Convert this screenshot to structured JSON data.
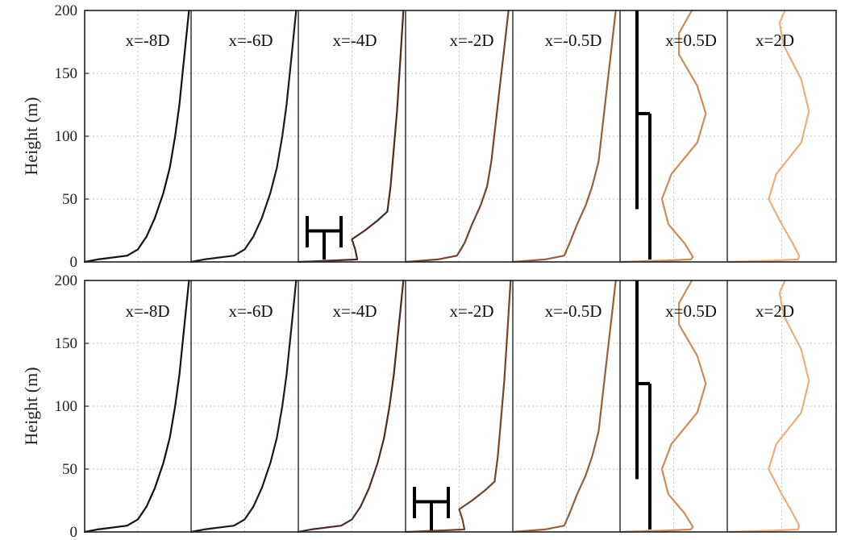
{
  "chart_data": [
    {
      "type": "line",
      "panel": "top",
      "ylabel": "Height (m)",
      "ylim": [
        0,
        200
      ],
      "yticks": [
        0,
        50,
        100,
        150,
        200
      ],
      "grid": true,
      "stations": [
        {
          "label": "x=-8D",
          "color": "#111111",
          "profile": [
            [
              0,
              0
            ],
            [
              0.12,
              2
            ],
            [
              0.4,
              5
            ],
            [
              0.5,
              10
            ],
            [
              0.58,
              20
            ],
            [
              0.66,
              35
            ],
            [
              0.74,
              55
            ],
            [
              0.8,
              75
            ],
            [
              0.85,
              100
            ],
            [
              0.89,
              125
            ],
            [
              0.92,
              150
            ],
            [
              0.95,
              175
            ],
            [
              0.98,
              200
            ]
          ]
        },
        {
          "label": "x=-6D",
          "color": "#241612",
          "profile": [
            [
              0,
              0
            ],
            [
              0.12,
              2
            ],
            [
              0.4,
              5
            ],
            [
              0.5,
              10
            ],
            [
              0.58,
              20
            ],
            [
              0.66,
              35
            ],
            [
              0.74,
              55
            ],
            [
              0.8,
              75
            ],
            [
              0.85,
              100
            ],
            [
              0.89,
              125
            ],
            [
              0.92,
              150
            ],
            [
              0.95,
              175
            ],
            [
              0.98,
              200
            ]
          ]
        },
        {
          "label": "x=-4D",
          "color": "#4a2d20",
          "profile": [
            [
              0,
              0
            ],
            [
              0.3,
              1
            ],
            [
              0.55,
              2
            ],
            [
              0.53,
              10
            ],
            [
              0.5,
              18
            ],
            [
              0.62,
              25
            ],
            [
              0.74,
              33
            ],
            [
              0.83,
              40
            ],
            [
              0.86,
              60
            ],
            [
              0.89,
              90
            ],
            [
              0.92,
              120
            ],
            [
              0.95,
              160
            ],
            [
              0.98,
              200
            ]
          ]
        },
        {
          "label": "x=-2D",
          "color": "#74452d",
          "profile": [
            [
              0,
              0
            ],
            [
              0.3,
              2
            ],
            [
              0.48,
              5
            ],
            [
              0.55,
              15
            ],
            [
              0.62,
              30
            ],
            [
              0.7,
              45
            ],
            [
              0.76,
              60
            ],
            [
              0.8,
              80
            ],
            [
              0.84,
              110
            ],
            [
              0.88,
              140
            ],
            [
              0.92,
              170
            ],
            [
              0.96,
              200
            ]
          ]
        },
        {
          "label": "x=-0.5D",
          "color": "#9a5f3a",
          "profile": [
            [
              0,
              0
            ],
            [
              0.3,
              2
            ],
            [
              0.48,
              5
            ],
            [
              0.53,
              15
            ],
            [
              0.6,
              30
            ],
            [
              0.68,
              45
            ],
            [
              0.74,
              60
            ],
            [
              0.8,
              80
            ],
            [
              0.84,
              110
            ],
            [
              0.88,
              140
            ],
            [
              0.92,
              170
            ],
            [
              0.96,
              200
            ]
          ]
        },
        {
          "label": "x=0.5D",
          "color": "#cf8b55",
          "profile": [
            [
              0,
              0
            ],
            [
              0.42,
              1
            ],
            [
              0.66,
              2
            ],
            [
              0.68,
              4
            ],
            [
              0.6,
              15
            ],
            [
              0.45,
              30
            ],
            [
              0.39,
              50
            ],
            [
              0.48,
              70
            ],
            [
              0.72,
              95
            ],
            [
              0.8,
              118
            ],
            [
              0.72,
              140
            ],
            [
              0.55,
              165
            ],
            [
              0.55,
              182
            ],
            [
              0.67,
              200
            ]
          ]
        },
        {
          "label": "x=2D",
          "color": "#f0ac76",
          "profile": [
            [
              0,
              0
            ],
            [
              0.42,
              1
            ],
            [
              0.65,
              2
            ],
            [
              0.66,
              5
            ],
            [
              0.6,
              15
            ],
            [
              0.5,
              30
            ],
            [
              0.38,
              50
            ],
            [
              0.45,
              70
            ],
            [
              0.68,
              95
            ],
            [
              0.75,
              120
            ],
            [
              0.68,
              145
            ],
            [
              0.52,
              172
            ],
            [
              0.48,
              190
            ],
            [
              0.53,
              200
            ]
          ]
        }
      ]
    },
    {
      "type": "line",
      "panel": "bottom",
      "ylabel": "Height (m)",
      "ylim": [
        0,
        200
      ],
      "yticks": [
        0,
        50,
        100,
        150,
        200
      ],
      "grid": true,
      "stations": [
        {
          "label": "x=-8D",
          "color": "#111111",
          "profile": [
            [
              0,
              0
            ],
            [
              0.12,
              2
            ],
            [
              0.4,
              5
            ],
            [
              0.5,
              10
            ],
            [
              0.58,
              20
            ],
            [
              0.66,
              35
            ],
            [
              0.74,
              55
            ],
            [
              0.8,
              75
            ],
            [
              0.85,
              100
            ],
            [
              0.89,
              125
            ],
            [
              0.92,
              150
            ],
            [
              0.95,
              175
            ],
            [
              0.98,
              200
            ]
          ]
        },
        {
          "label": "x=-6D",
          "color": "#241612",
          "profile": [
            [
              0,
              0
            ],
            [
              0.12,
              2
            ],
            [
              0.4,
              5
            ],
            [
              0.5,
              10
            ],
            [
              0.58,
              20
            ],
            [
              0.66,
              35
            ],
            [
              0.74,
              55
            ],
            [
              0.8,
              75
            ],
            [
              0.85,
              100
            ],
            [
              0.89,
              125
            ],
            [
              0.92,
              150
            ],
            [
              0.95,
              175
            ],
            [
              0.98,
              200
            ]
          ]
        },
        {
          "label": "x=-4D",
          "color": "#4a2d20",
          "profile": [
            [
              0,
              0
            ],
            [
              0.12,
              2
            ],
            [
              0.4,
              5
            ],
            [
              0.5,
              10
            ],
            [
              0.58,
              20
            ],
            [
              0.66,
              35
            ],
            [
              0.74,
              55
            ],
            [
              0.8,
              75
            ],
            [
              0.85,
              100
            ],
            [
              0.89,
              125
            ],
            [
              0.92,
              150
            ],
            [
              0.95,
              175
            ],
            [
              0.98,
              200
            ]
          ]
        },
        {
          "label": "x=-2D",
          "color": "#74452d",
          "profile": [
            [
              0,
              0
            ],
            [
              0.3,
              1
            ],
            [
              0.55,
              2
            ],
            [
              0.53,
              10
            ],
            [
              0.5,
              18
            ],
            [
              0.62,
              25
            ],
            [
              0.74,
              33
            ],
            [
              0.83,
              40
            ],
            [
              0.86,
              60
            ],
            [
              0.89,
              90
            ],
            [
              0.92,
              120
            ],
            [
              0.95,
              160
            ],
            [
              0.98,
              200
            ]
          ]
        },
        {
          "label": "x=-0.5D",
          "color": "#9a5f3a",
          "profile": [
            [
              0,
              0
            ],
            [
              0.3,
              2
            ],
            [
              0.48,
              5
            ],
            [
              0.53,
              15
            ],
            [
              0.6,
              30
            ],
            [
              0.68,
              45
            ],
            [
              0.74,
              60
            ],
            [
              0.8,
              80
            ],
            [
              0.84,
              110
            ],
            [
              0.88,
              140
            ],
            [
              0.92,
              170
            ],
            [
              0.96,
              200
            ]
          ]
        },
        {
          "label": "x=0.5D",
          "color": "#cf8b55",
          "profile": [
            [
              0,
              0
            ],
            [
              0.42,
              1
            ],
            [
              0.66,
              2
            ],
            [
              0.68,
              4
            ],
            [
              0.6,
              15
            ],
            [
              0.45,
              30
            ],
            [
              0.39,
              50
            ],
            [
              0.48,
              70
            ],
            [
              0.72,
              95
            ],
            [
              0.8,
              118
            ],
            [
              0.72,
              140
            ],
            [
              0.55,
              165
            ],
            [
              0.55,
              182
            ],
            [
              0.67,
              200
            ]
          ]
        },
        {
          "label": "x=2D",
          "color": "#f0ac76",
          "profile": [
            [
              0,
              0
            ],
            [
              0.42,
              1
            ],
            [
              0.65,
              2
            ],
            [
              0.66,
              5
            ],
            [
              0.6,
              15
            ],
            [
              0.5,
              30
            ],
            [
              0.38,
              50
            ],
            [
              0.45,
              70
            ],
            [
              0.68,
              95
            ],
            [
              0.75,
              120
            ],
            [
              0.68,
              145
            ],
            [
              0.52,
              172
            ],
            [
              0.48,
              190
            ],
            [
              0.53,
              200
            ]
          ]
        }
      ]
    }
  ]
}
